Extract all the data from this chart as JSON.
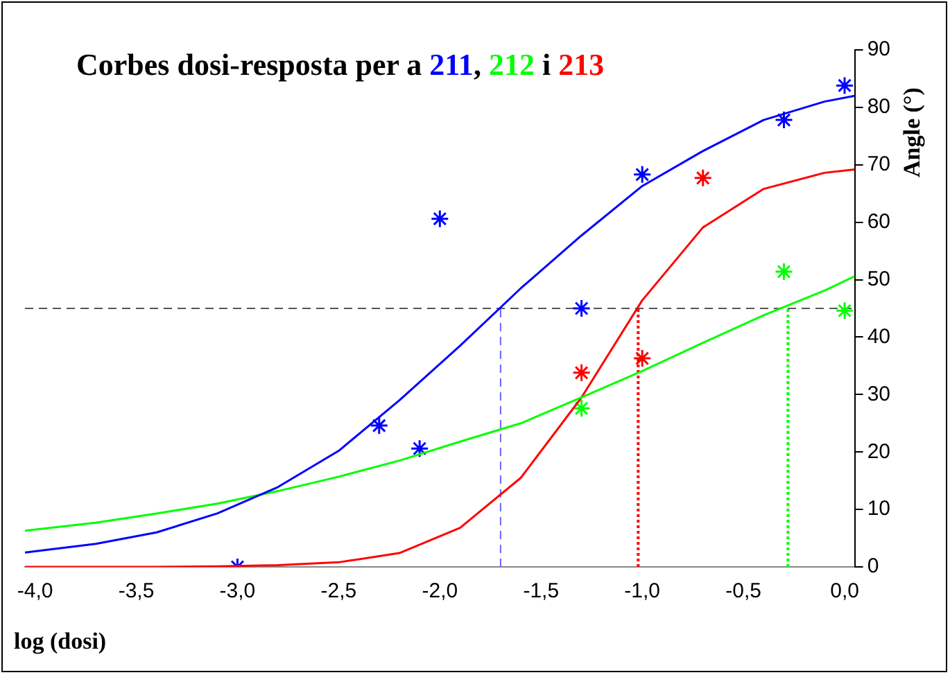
{
  "chart_data": {
    "type": "line",
    "title": "Corbes dosi-resposta per a 211, 212 i 213",
    "xlabel": "log (dosi)",
    "ylabel": "Angle (°)",
    "xlim": [
      -4.05,
      0.05
    ],
    "ylim": [
      0,
      90
    ],
    "xticks": [
      {
        "value": -4,
        "label": "-4,0"
      },
      {
        "value": -3.5,
        "label": "-3,5"
      },
      {
        "value": -3,
        "label": "-3,0"
      },
      {
        "value": -2.5,
        "label": "-2,5"
      },
      {
        "value": -2,
        "label": "-2,0"
      },
      {
        "value": -1.5,
        "label": "-1,5"
      },
      {
        "value": -1,
        "label": "-1,0"
      },
      {
        "value": -0.5,
        "label": "-0,5"
      },
      {
        "value": 0,
        "label": "0,0"
      }
    ],
    "yticks": [
      0,
      10,
      20,
      30,
      40,
      50,
      60,
      70,
      80,
      90
    ],
    "grid": false,
    "legend": false,
    "series": [
      {
        "marker": "none",
        "color": "#0000ff",
        "x": [
          -4.05,
          -3.7,
          -3.4,
          -3.1,
          -2.8,
          -2.5,
          -2.2,
          -1.9,
          -1.6,
          -1.3,
          -1.0,
          -0.7,
          -0.4,
          -0.1,
          0.05
        ],
        "values": [
          2.5,
          4,
          6,
          9.3,
          13.9,
          20.2,
          29,
          38.5,
          48.5,
          57.7,
          66.3,
          72.4,
          77.8,
          81,
          82
        ]
      },
      {
        "marker": "none",
        "color": "#00ff00",
        "x": [
          -4.05,
          -3.7,
          -3.4,
          -3.1,
          -2.8,
          -2.5,
          -2.2,
          -1.9,
          -1.6,
          -1.3,
          -1.0,
          -0.7,
          -0.4,
          -0.1,
          0.05
        ],
        "values": [
          6.3,
          7.7,
          9.3,
          11,
          13.2,
          15.7,
          18.5,
          21.8,
          25,
          29.5,
          34.1,
          39,
          43.8,
          48.1,
          50.6
        ]
      },
      {
        "marker": "none",
        "color": "#ff0000",
        "x": [
          -4.05,
          -3.7,
          -3.4,
          -3.1,
          -2.8,
          -2.5,
          -2.2,
          -1.9,
          -1.6,
          -1.3,
          -1.0,
          -0.7,
          -0.4,
          -0.1,
          0.05
        ],
        "values": [
          0,
          0,
          0,
          0.1,
          0.3,
          0.8,
          2.4,
          6.8,
          15.5,
          29.5,
          46.4,
          59.1,
          65.8,
          68.6,
          69.2
        ]
      },
      {
        "type": "scatter",
        "marker": "cross",
        "color": "#0000ff",
        "x": [
          -3.0,
          -2.3,
          -2.1,
          -2.0,
          -1.3,
          -1.0,
          -0.3,
          0.0
        ],
        "values": [
          0,
          24.6,
          20.6,
          60.6,
          45,
          68.3,
          77.8,
          83.8
        ]
      },
      {
        "type": "scatter",
        "marker": "cross",
        "color": "#00ff00",
        "x": [
          -1.3,
          -0.3,
          0.0
        ],
        "values": [
          27.6,
          51.4,
          44.6
        ]
      },
      {
        "type": "scatter",
        "marker": "cross",
        "color": "#ff0000",
        "x": [
          -1.3,
          -1.0,
          -0.7
        ],
        "values": [
          33.8,
          36.3,
          67.7
        ]
      }
    ],
    "ref_lines": [
      {
        "axis": "y",
        "value": 45,
        "color": "#555555",
        "line_style": "dashed"
      },
      {
        "axis": "x",
        "value": -1.7,
        "color": "#6666ff",
        "line_style": "dashed"
      },
      {
        "axis": "x",
        "value": -1.02,
        "color": "#ff0000",
        "line_style": "dotted"
      },
      {
        "axis": "x",
        "value": -0.28,
        "color": "#00ff00",
        "line_style": "dotted"
      }
    ]
  }
}
